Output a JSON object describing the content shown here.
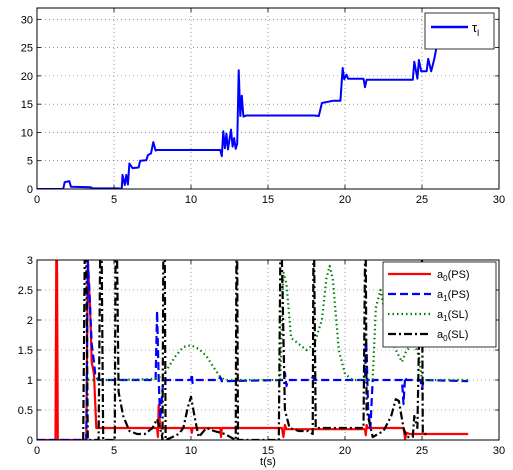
{
  "chart_data": [
    {
      "type": "line",
      "title": "",
      "xlabel": "",
      "ylabel": "",
      "xlim": [
        0,
        30
      ],
      "ylim": [
        0,
        32
      ],
      "xticks": [
        0,
        5,
        10,
        15,
        20,
        25,
        30
      ],
      "xtick_labels": [
        "0",
        "5",
        "10",
        "15",
        "20",
        "25",
        "30"
      ],
      "yticks": [
        0,
        5,
        10,
        15,
        20,
        25,
        30
      ],
      "ytick_labels": [
        "0",
        "5",
        "10",
        "15",
        "20",
        "25",
        "30"
      ],
      "grid": true,
      "legend": "top-right",
      "legend_label": "τ",
      "legend_sub": "l",
      "series": [
        {
          "name": "τl",
          "color": "#0000ff",
          "style": "solid",
          "points": [
            [
              0,
              0
            ],
            [
              1.7,
              0
            ],
            [
              1.8,
              1.2
            ],
            [
              2.1,
              1.4
            ],
            [
              2.2,
              0.4
            ],
            [
              3.5,
              0.3
            ],
            [
              3.6,
              0.1
            ],
            [
              5.3,
              0.1
            ],
            [
              5.5,
              0
            ],
            [
              5.55,
              2.5
            ],
            [
              5.7,
              0.7
            ],
            [
              5.8,
              2.5
            ],
            [
              5.9,
              0.8
            ],
            [
              6.0,
              4.5
            ],
            [
              6.2,
              3.7
            ],
            [
              6.6,
              3.8
            ],
            [
              6.7,
              5.0
            ],
            [
              7.1,
              5.1
            ],
            [
              7.2,
              6.0
            ],
            [
              7.4,
              6.3
            ],
            [
              7.55,
              8.3
            ],
            [
              7.7,
              6.8
            ],
            [
              7.8,
              6.9
            ],
            [
              11.9,
              6.9
            ],
            [
              12.0,
              5.8
            ],
            [
              12.1,
              10.2
            ],
            [
              12.2,
              7.2
            ],
            [
              12.3,
              9.8
            ],
            [
              12.4,
              7.0
            ],
            [
              12.6,
              10.5
            ],
            [
              12.7,
              7.5
            ],
            [
              12.8,
              9.0
            ],
            [
              12.9,
              7.1
            ],
            [
              13.0,
              8.0
            ],
            [
              13.1,
              21.0
            ],
            [
              13.2,
              12.9
            ],
            [
              13.3,
              16.5
            ],
            [
              13.4,
              12.8
            ],
            [
              13.6,
              13.0
            ],
            [
              18.0,
              13.0
            ],
            [
              18.3,
              12.9
            ],
            [
              18.5,
              15.2
            ],
            [
              19.2,
              15.6
            ],
            [
              19.7,
              15.6
            ],
            [
              19.85,
              21.4
            ],
            [
              19.95,
              19.4
            ],
            [
              20.1,
              20.2
            ],
            [
              20.2,
              19.5
            ],
            [
              21.2,
              19.5
            ],
            [
              21.3,
              18.0
            ],
            [
              21.4,
              19.3
            ],
            [
              24.4,
              19.3
            ],
            [
              24.5,
              22.5
            ],
            [
              24.7,
              19.5
            ],
            [
              24.8,
              22.8
            ],
            [
              24.95,
              20.8
            ],
            [
              25.3,
              20.8
            ],
            [
              25.4,
              23.0
            ],
            [
              25.6,
              20.8
            ],
            [
              25.8,
              23.0
            ],
            [
              25.9,
              24.5
            ],
            [
              26.05,
              27.5
            ],
            [
              26.2,
              25.5
            ],
            [
              27.8,
              25.5
            ]
          ]
        }
      ]
    },
    {
      "type": "line",
      "title": "",
      "xlabel": "t(s)",
      "ylabel": "",
      "xlim": [
        0,
        30
      ],
      "ylim": [
        0,
        3
      ],
      "xticks": [
        0,
        5,
        10,
        15,
        20,
        25,
        30
      ],
      "xtick_labels": [
        "0",
        "5",
        "10",
        "15",
        "20",
        "25",
        "30"
      ],
      "yticks": [
        0,
        0.5,
        1,
        1.5,
        2,
        2.5,
        3
      ],
      "ytick_labels": [
        "0",
        "0.5",
        "1",
        "1.5",
        "2",
        "2.5",
        "3"
      ],
      "grid": true,
      "legend": "top-right",
      "series": [
        {
          "name": "a0(PS)",
          "label_main": "a",
          "label_sub": "0",
          "label_tail": "(PS)",
          "color": "#ff0000",
          "style": "solid",
          "points": [
            [
              0,
              0
            ],
            [
              1.2,
              0
            ],
            [
              1.25,
              3.0
            ],
            [
              1.3,
              3.0
            ],
            [
              1.35,
              0
            ],
            [
              3.2,
              0
            ],
            [
              3.3,
              3.0
            ],
            [
              3.45,
              2.2
            ],
            [
              3.55,
              1.3
            ],
            [
              3.7,
              1.1
            ],
            [
              3.85,
              0.2
            ],
            [
              4.1,
              0.2
            ],
            [
              7.8,
              0.2
            ],
            [
              7.85,
              0.05
            ],
            [
              7.9,
              0.58
            ],
            [
              8.0,
              0.2
            ],
            [
              10.0,
              0.2
            ],
            [
              10.05,
              0.12
            ],
            [
              10.1,
              0.2
            ],
            [
              11.9,
              0.2
            ],
            [
              11.95,
              0.05
            ],
            [
              12.0,
              0.2
            ],
            [
              15.9,
              0.2
            ],
            [
              16.0,
              0.05
            ],
            [
              16.1,
              0.25
            ],
            [
              16.2,
              0.18
            ],
            [
              21.3,
              0.18
            ],
            [
              21.35,
              0.08
            ],
            [
              21.4,
              0.25
            ],
            [
              21.5,
              0.2
            ],
            [
              23.8,
              0.2
            ],
            [
              23.9,
              0.02
            ],
            [
              24.0,
              0.12
            ],
            [
              24.2,
              0.1
            ],
            [
              28.0,
              0.1
            ]
          ]
        },
        {
          "name": "a1(PS)",
          "label_main": "a",
          "label_sub": "1",
          "label_tail": "(PS)",
          "color": "#0000ff",
          "style": "dashed",
          "points": [
            [
              0,
              0
            ],
            [
              3.2,
              0
            ],
            [
              3.3,
              3.0
            ],
            [
              3.4,
              2.5
            ],
            [
              3.55,
              1.6
            ],
            [
              3.7,
              1.3
            ],
            [
              3.8,
              1.05
            ],
            [
              4.0,
              1.0
            ],
            [
              7.7,
              1.0
            ],
            [
              7.8,
              2.15
            ],
            [
              7.9,
              1.0
            ],
            [
              8.0,
              0.35
            ],
            [
              8.2,
              1.0
            ],
            [
              10.0,
              1.0
            ],
            [
              10.05,
              1.1
            ],
            [
              10.1,
              0.95
            ],
            [
              10.2,
              1.0
            ],
            [
              11.8,
              1.0
            ],
            [
              11.9,
              1.05
            ],
            [
              12.0,
              0.98
            ],
            [
              16.0,
              1.0
            ],
            [
              16.1,
              1.12
            ],
            [
              16.2,
              0.9
            ],
            [
              16.3,
              1.0
            ],
            [
              17.8,
              1.0
            ],
            [
              17.9,
              1.05
            ],
            [
              18.0,
              1.0
            ],
            [
              21.3,
              1.0
            ],
            [
              21.35,
              1.65
            ],
            [
              21.4,
              1.5
            ],
            [
              21.5,
              0.5
            ],
            [
              21.65,
              0.2
            ],
            [
              21.8,
              1.0
            ],
            [
              23.7,
              1.0
            ],
            [
              23.8,
              0.6
            ],
            [
              23.9,
              1.05
            ],
            [
              24.0,
              1.0
            ],
            [
              24.9,
              1.0
            ],
            [
              25.0,
              0.85
            ],
            [
              25.1,
              1.0
            ],
            [
              28.0,
              0.98
            ]
          ]
        },
        {
          "name": "a1(SL)",
          "label_main": "a",
          "label_sub": "1",
          "label_tail": "(SL)",
          "color": "#008000",
          "style": "dotted",
          "points": [
            [
              3.3,
              1.0
            ],
            [
              5.0,
              1.0
            ],
            [
              5.2,
              1.0
            ],
            [
              7.7,
              1.02
            ],
            [
              7.8,
              1.05
            ],
            [
              8.1,
              1.05
            ],
            [
              8.5,
              1.2
            ],
            [
              9.0,
              1.4
            ],
            [
              9.5,
              1.55
            ],
            [
              10.0,
              1.58
            ],
            [
              10.5,
              1.52
            ],
            [
              11.0,
              1.4
            ],
            [
              11.5,
              1.2
            ],
            [
              11.9,
              1.05
            ],
            [
              12.2,
              1.0
            ],
            [
              15.8,
              1.0
            ],
            [
              16.0,
              2.8
            ],
            [
              16.2,
              2.6
            ],
            [
              16.5,
              1.7
            ],
            [
              17.0,
              1.6
            ],
            [
              17.5,
              1.5
            ],
            [
              18.0,
              1.6
            ],
            [
              18.5,
              2.0
            ],
            [
              18.8,
              2.7
            ],
            [
              19.0,
              2.9
            ],
            [
              19.2,
              2.7
            ],
            [
              19.6,
              1.5
            ],
            [
              20.0,
              1.1
            ],
            [
              20.5,
              1.0
            ],
            [
              21.8,
              1.0
            ],
            [
              22.0,
              2.2
            ],
            [
              22.3,
              2.5
            ],
            [
              22.7,
              2.0
            ],
            [
              23.0,
              1.7
            ],
            [
              23.3,
              1.5
            ],
            [
              23.7,
              1.3
            ],
            [
              24.0,
              1.5
            ],
            [
              24.5,
              1.6
            ],
            [
              24.8,
              1.4
            ],
            [
              25.0,
              1.0
            ],
            [
              28.0,
              1.0
            ]
          ]
        },
        {
          "name": "a0(SL)",
          "label_main": "a",
          "label_sub": "0",
          "label_tail": "(SL)",
          "color": "#000000",
          "style": "dashdot",
          "points": [
            [
              3.0,
              0
            ],
            [
              3.1,
              3.0
            ],
            [
              3.2,
              3.0
            ],
            [
              3.3,
              0
            ],
            [
              4.0,
              0
            ],
            [
              4.1,
              3.0
            ],
            [
              4.2,
              3.0
            ],
            [
              4.3,
              0
            ],
            [
              5.05,
              0
            ],
            [
              5.1,
              3.0
            ],
            [
              5.2,
              3.0
            ],
            [
              5.3,
              0.8
            ],
            [
              5.6,
              0.4
            ],
            [
              6.0,
              0.15
            ],
            [
              6.5,
              0.1
            ],
            [
              7.0,
              0.1
            ],
            [
              7.5,
              0.2
            ],
            [
              7.8,
              0.35
            ],
            [
              8.1,
              0.1
            ],
            [
              8.15,
              0
            ],
            [
              8.2,
              3.0
            ],
            [
              8.3,
              3.0
            ],
            [
              8.35,
              0
            ],
            [
              8.8,
              0.05
            ],
            [
              9.2,
              0.1
            ],
            [
              9.5,
              0.2
            ],
            [
              9.8,
              0.55
            ],
            [
              10.0,
              0.72
            ],
            [
              10.3,
              0.3
            ],
            [
              10.5,
              0.05
            ],
            [
              11.0,
              0.2
            ],
            [
              11.5,
              0.15
            ],
            [
              12.2,
              0.1
            ],
            [
              12.9,
              0
            ],
            [
              12.95,
              3.0
            ],
            [
              13.0,
              3.0
            ],
            [
              13.05,
              0
            ],
            [
              15.7,
              0
            ],
            [
              15.8,
              3.0
            ],
            [
              15.9,
              3.0
            ],
            [
              16.1,
              0.5
            ],
            [
              16.4,
              0.2
            ],
            [
              17.0,
              0.15
            ],
            [
              17.6,
              0.15
            ],
            [
              17.9,
              0.1
            ],
            [
              17.95,
              3.0
            ],
            [
              18.0,
              3.0
            ],
            [
              18.1,
              0.2
            ],
            [
              19.0,
              0.2
            ],
            [
              20.0,
              0.2
            ],
            [
              21.2,
              0.2
            ],
            [
              21.3,
              3.0
            ],
            [
              21.35,
              3.0
            ],
            [
              21.4,
              0.5
            ],
            [
              21.8,
              0.05
            ],
            [
              22.5,
              0.15
            ],
            [
              23.0,
              0.4
            ],
            [
              23.3,
              0.68
            ],
            [
              23.5,
              0.65
            ],
            [
              23.8,
              0.2
            ],
            [
              24.0,
              0.05
            ],
            [
              24.4,
              0.05
            ],
            [
              24.5,
              0.4
            ],
            [
              24.7,
              0.2
            ],
            [
              24.9,
              3.0
            ],
            [
              25.0,
              3.0
            ],
            [
              25.05,
              0.1
            ],
            [
              25.3,
              0.1
            ]
          ]
        }
      ]
    }
  ]
}
